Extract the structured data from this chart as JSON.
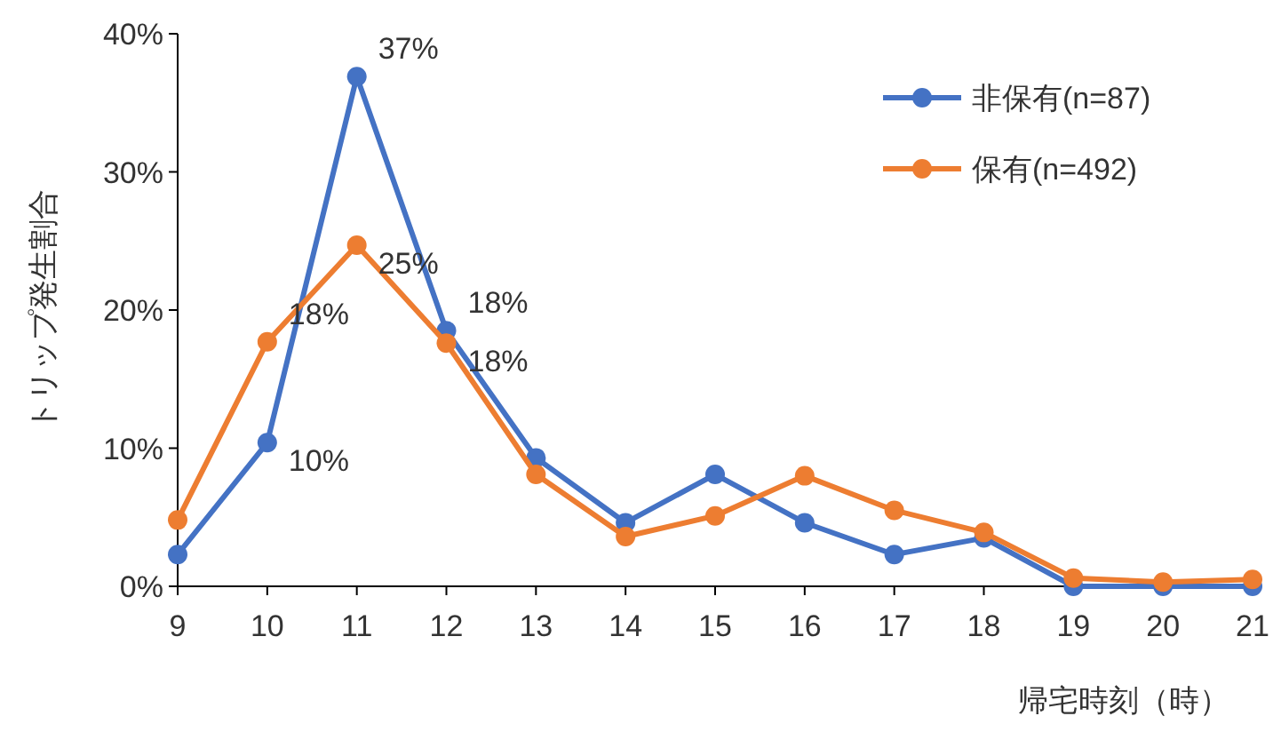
{
  "chart_data": {
    "type": "line",
    "ylabel": "トリップ発生割合",
    "xlabel": "帰宅時刻（時）",
    "x": [
      9,
      10,
      11,
      12,
      13,
      14,
      15,
      16,
      17,
      18,
      19,
      20,
      21
    ],
    "xlim": [
      9,
      21
    ],
    "xticks": [
      9,
      10,
      11,
      12,
      13,
      14,
      15,
      16,
      17,
      18,
      19,
      20,
      21
    ],
    "ylim": [
      0,
      40
    ],
    "yticks": [
      {
        "value": 0,
        "label": "0%"
      },
      {
        "value": 10,
        "label": "10%"
      },
      {
        "value": 20,
        "label": "20%"
      },
      {
        "value": 30,
        "label": "30%"
      },
      {
        "value": 40,
        "label": "40%"
      }
    ],
    "grid": false,
    "legend": "top right",
    "marker": "circle",
    "line_style": "solid",
    "series": [
      {
        "name": "非保有(n=87)",
        "color": "#4472c4",
        "values": [
          2.3,
          10.4,
          36.9,
          18.5,
          9.3,
          4.6,
          8.1,
          4.6,
          2.3,
          3.5,
          0,
          0,
          0
        ],
        "value_labels": [
          null,
          "10%",
          "37%",
          "18%",
          null,
          null,
          null,
          null,
          null,
          null,
          null,
          null,
          null
        ]
      },
      {
        "name": "保有(n=492)",
        "color": "#ed7d31",
        "values": [
          4.8,
          17.7,
          24.7,
          17.6,
          8.1,
          3.6,
          5.1,
          8.0,
          5.5,
          3.9,
          0.6,
          0.3,
          0.5
        ],
        "value_labels": [
          null,
          "18%",
          "25%",
          "18%",
          null,
          null,
          null,
          null,
          null,
          null,
          null,
          null,
          null
        ]
      }
    ]
  }
}
